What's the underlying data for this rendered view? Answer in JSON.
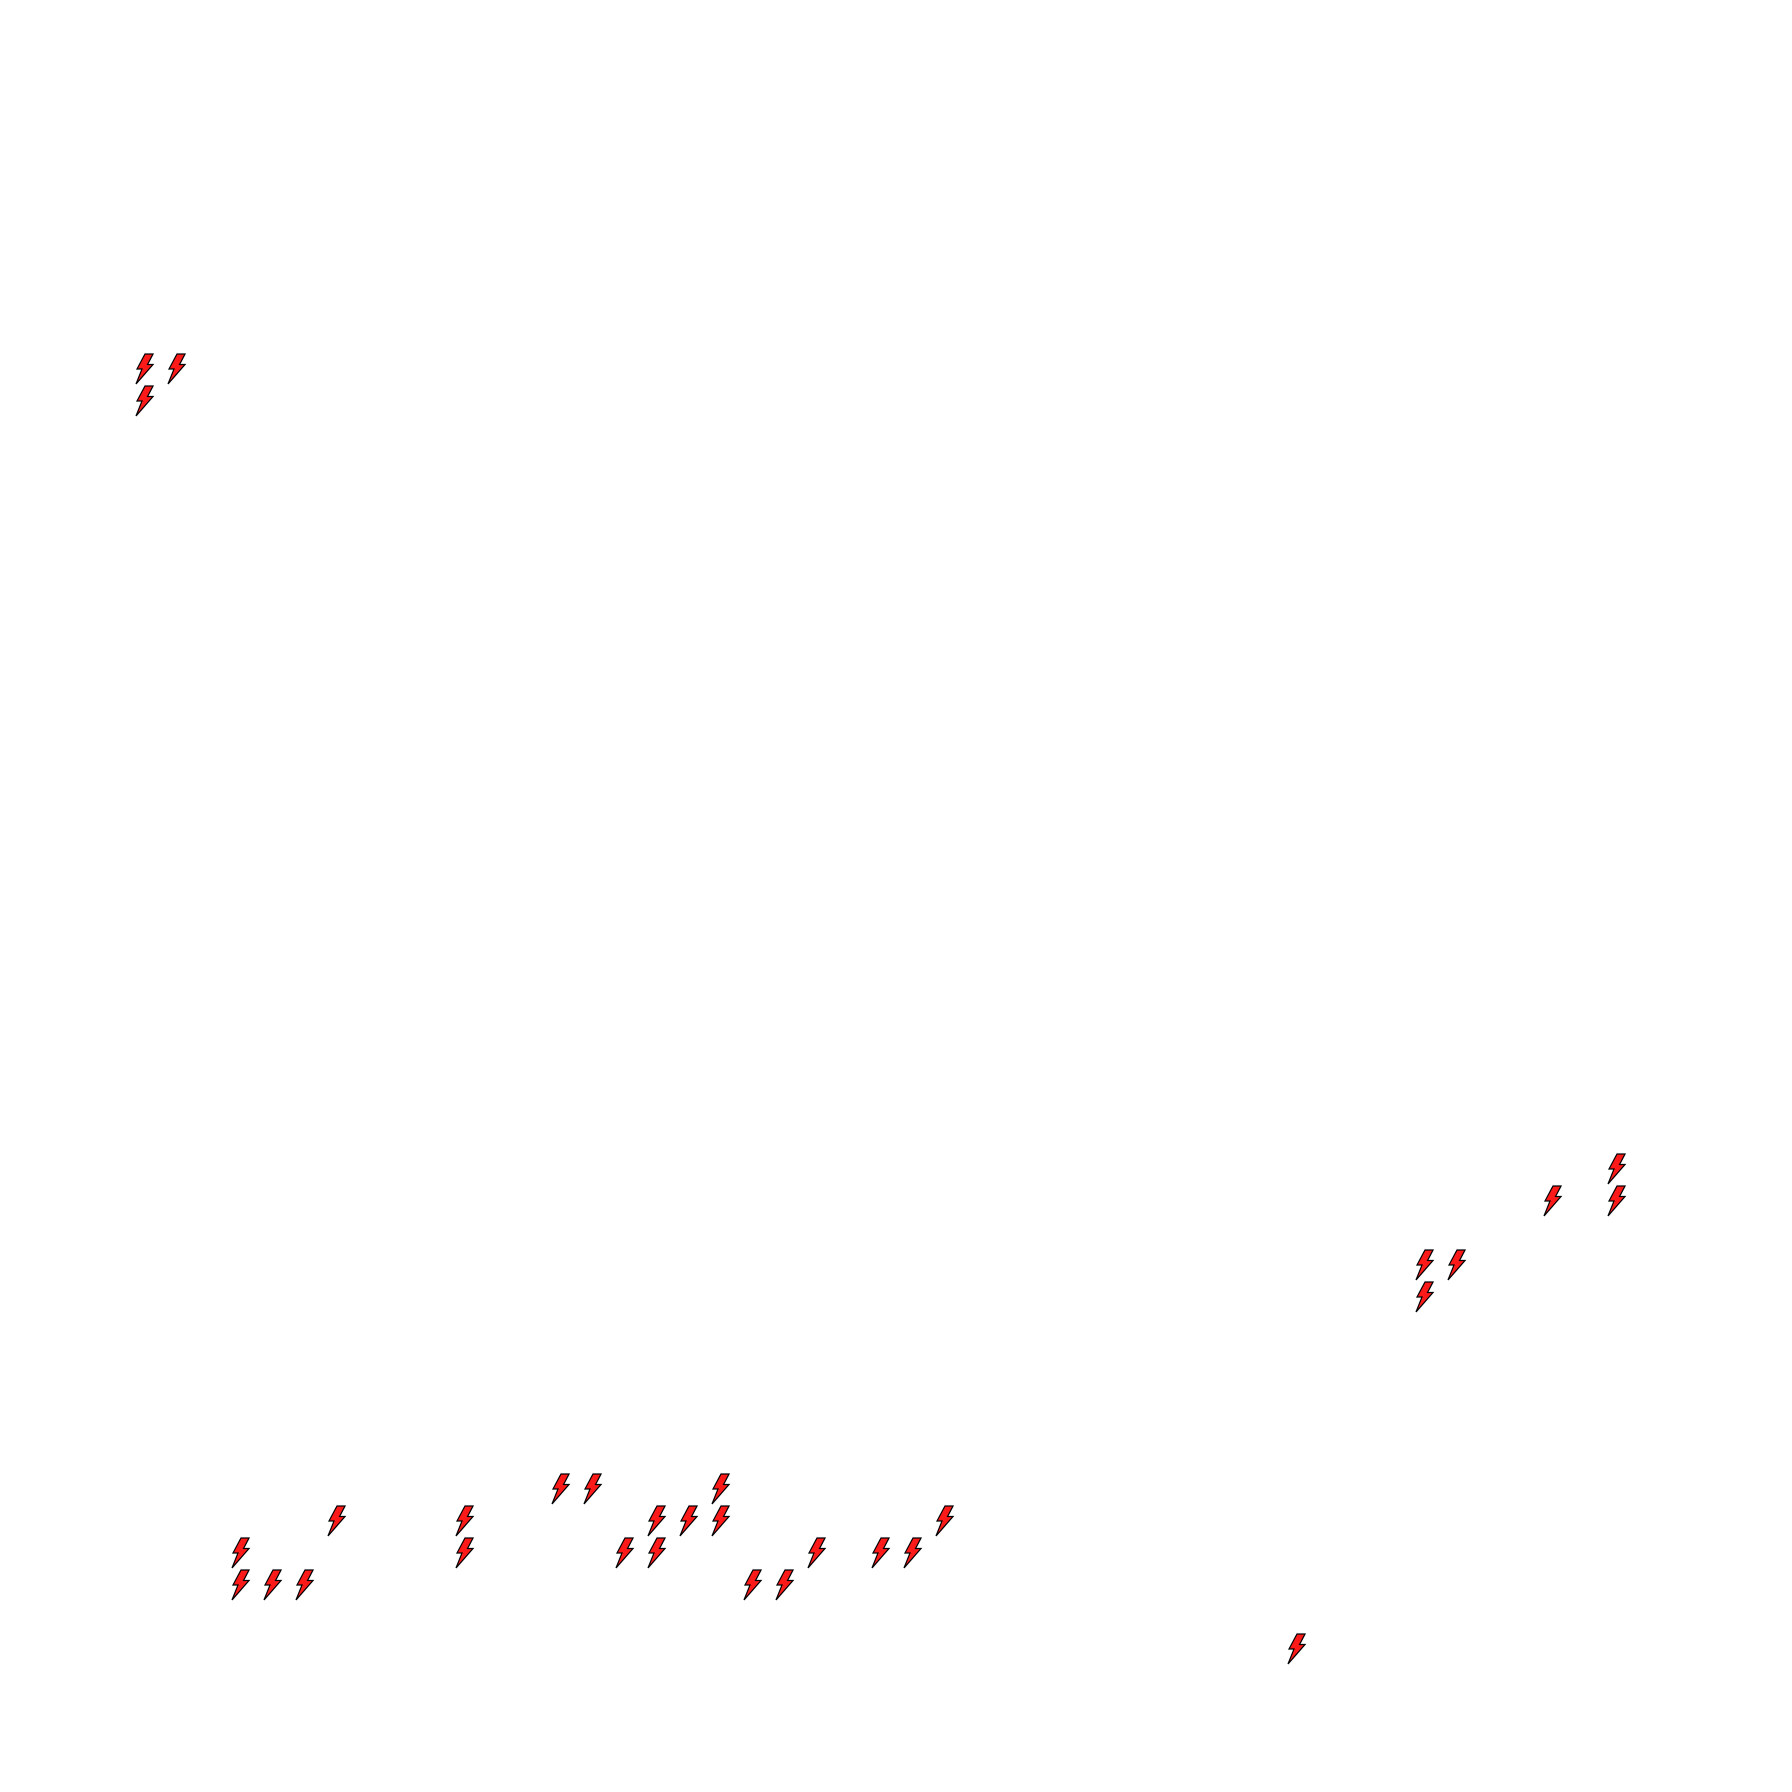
{
  "canvas": {
    "background": "#ffffff"
  },
  "icon": {
    "name": "lightning-bolt-icon",
    "fill": "#ff1a1a",
    "stroke": "#000000",
    "shadow": "#9a9a9a"
  }
}
